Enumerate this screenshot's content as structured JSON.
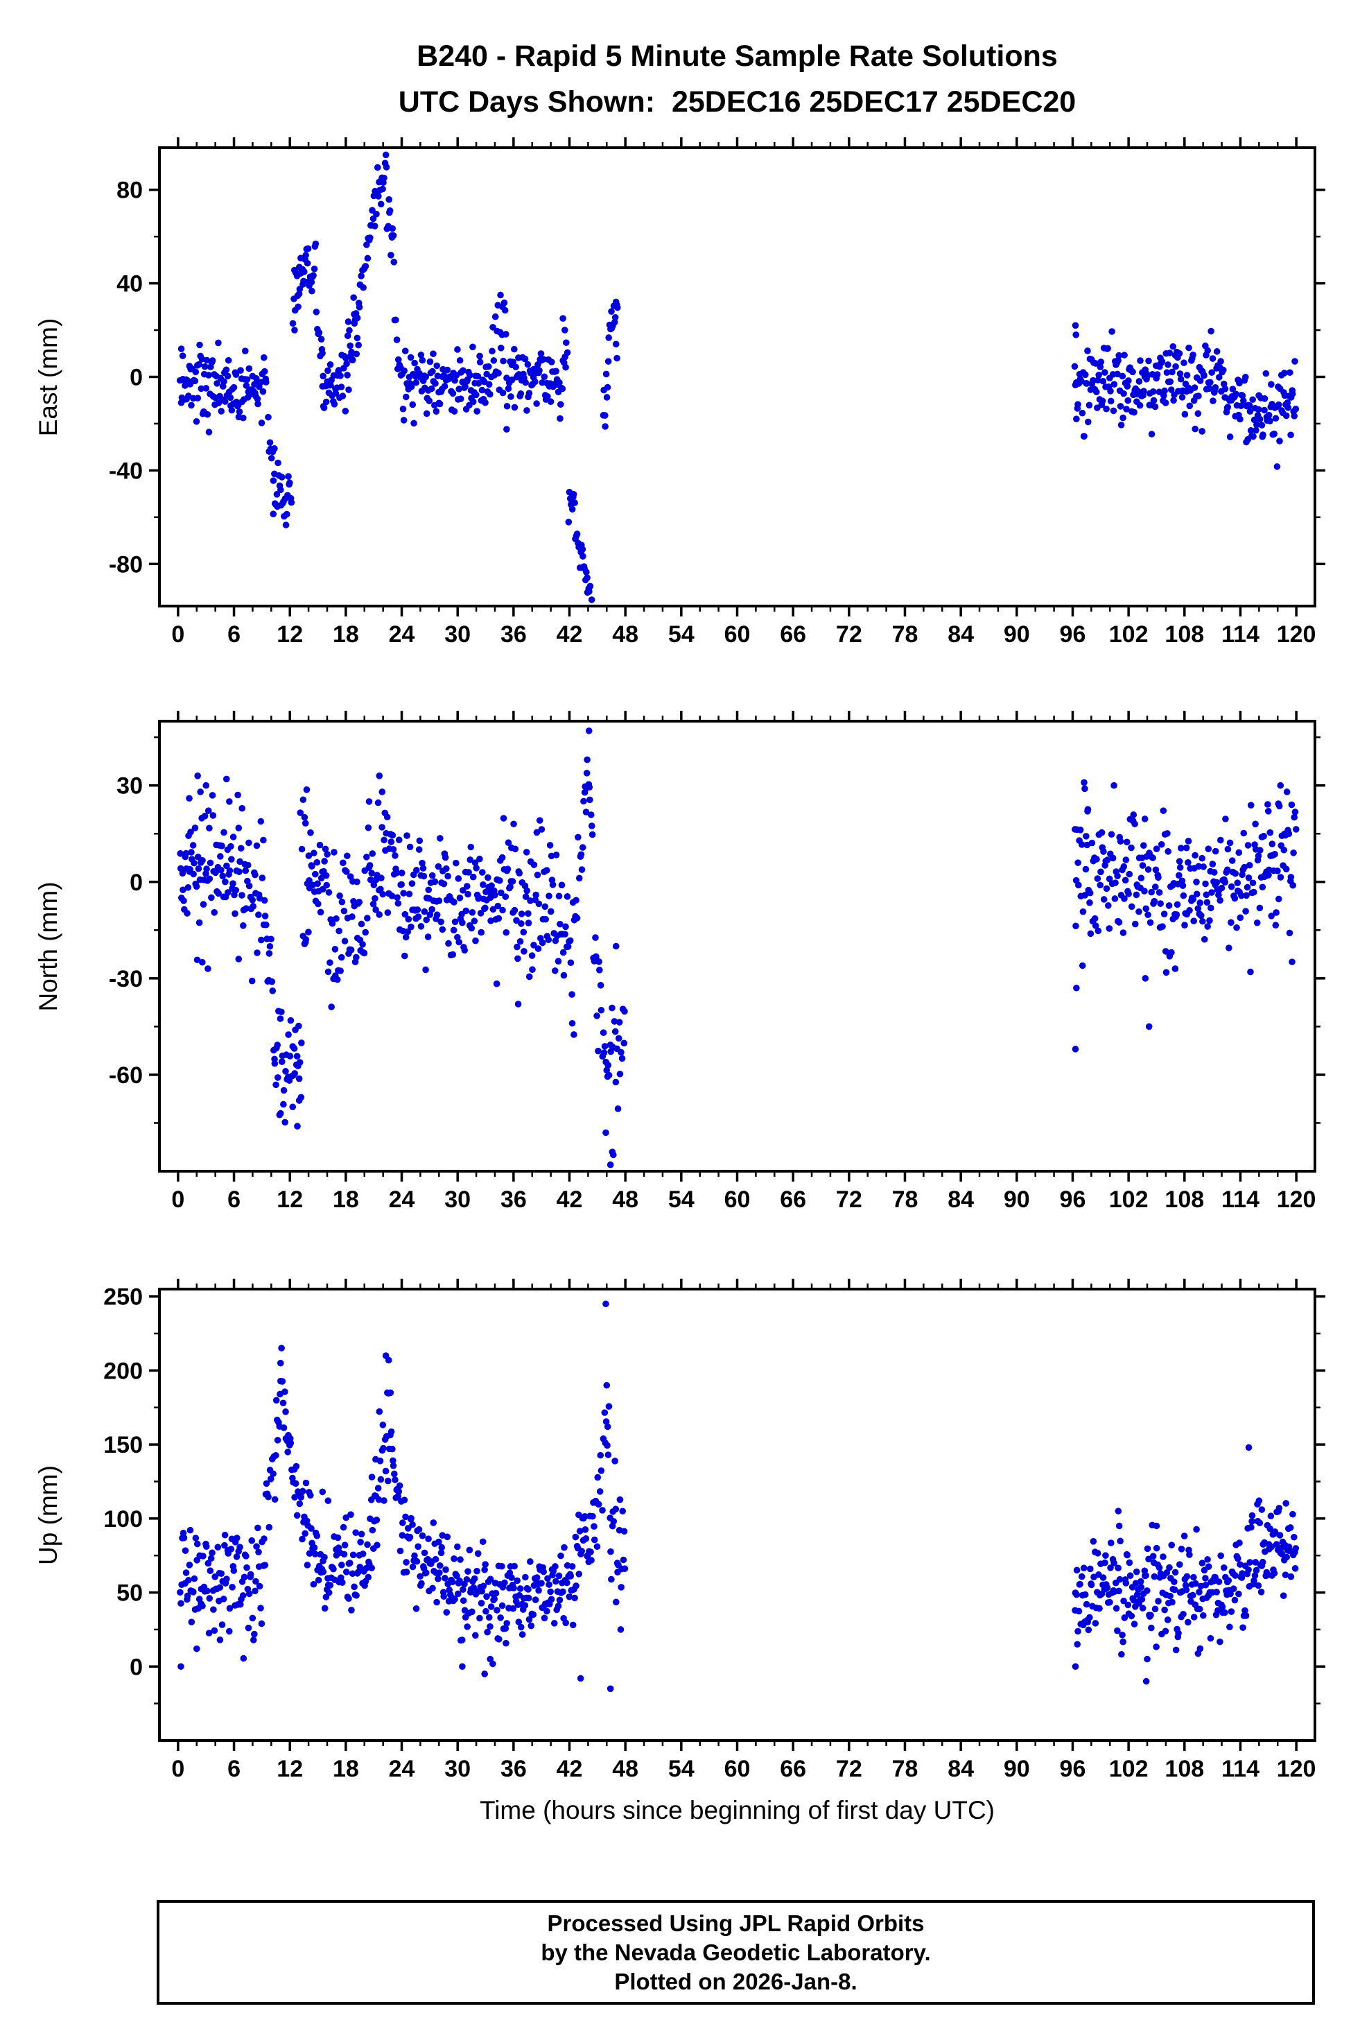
{
  "title": {
    "line1": "B240 - Rapid 5 Minute Sample Rate Solutions",
    "line2": "UTC Days Shown:  25DEC16 25DEC17 25DEC20"
  },
  "footer": {
    "lines": [
      "Processed Using JPL Rapid Orbits",
      "by the Nevada Geodetic Laboratory.",
      "Plotted on 2026-Jan-8."
    ]
  },
  "chart_data": {
    "type": "scatter",
    "station": "B240",
    "days_shown": [
      "25DEC16",
      "25DEC17",
      "25DEC20"
    ],
    "xlabel": "Time (hours since beginning of first day UTC)",
    "xlim": [
      -2,
      122
    ],
    "xticks": [
      0,
      6,
      12,
      18,
      24,
      30,
      36,
      42,
      48,
      54,
      60,
      66,
      72,
      78,
      84,
      90,
      96,
      102,
      108,
      114,
      120
    ],
    "xtick_minor": 2,
    "grid": false,
    "legend": "none",
    "marker": {
      "color": "#0000dd",
      "radius": 4.8
    },
    "segment_format": "[x_start, x_end, n_points, y_mean_start, y_mean_end, y_sd] (mm vs hours)",
    "panels": [
      {
        "name": "east",
        "ylabel": "East (mm)",
        "ylim": [
          -98,
          98
        ],
        "yticks": [
          -80,
          -40,
          0,
          40,
          80
        ],
        "ytick_minor": 20,
        "seed": 7,
        "segments": [
          [
            0.2,
            9.5,
            108,
            -4,
            -4,
            7
          ],
          [
            9.6,
            10.4,
            8,
            -18,
            -35,
            8
          ],
          [
            10.2,
            12.2,
            24,
            -50,
            -52,
            7
          ],
          [
            12.3,
            13.1,
            10,
            25,
            38,
            9
          ],
          [
            13.0,
            14.8,
            24,
            46,
            44,
            6
          ],
          [
            14.8,
            15.6,
            8,
            24,
            12,
            7
          ],
          [
            15.4,
            17.3,
            24,
            -5,
            -5,
            7
          ],
          [
            17.3,
            18.3,
            12,
            -2,
            2,
            9
          ],
          [
            18.2,
            19.5,
            20,
            8,
            32,
            8
          ],
          [
            19.5,
            20.3,
            8,
            42,
            48,
            5
          ],
          [
            20.3,
            21.3,
            12,
            55,
            74,
            6
          ],
          [
            21.3,
            22.4,
            14,
            80,
            90,
            4
          ],
          [
            22.4,
            23.2,
            12,
            72,
            56,
            6
          ],
          [
            23.2,
            24.0,
            8,
            26,
            4,
            6
          ],
          [
            24.0,
            33.5,
            112,
            -2,
            -2,
            8
          ],
          [
            33.6,
            35.3,
            20,
            6,
            14,
            9
          ],
          [
            35.2,
            40.6,
            60,
            0,
            -1,
            8
          ],
          [
            40.6,
            41.8,
            14,
            2,
            4,
            9
          ],
          [
            41.9,
            42.6,
            9,
            -45,
            -60,
            6
          ],
          [
            42.6,
            43.6,
            12,
            -63,
            -84,
            5
          ],
          [
            43.6,
            44.4,
            10,
            -86,
            -95,
            4
          ],
          [
            45.6,
            46.2,
            8,
            -18,
            2,
            8
          ],
          [
            46.2,
            47.2,
            12,
            18,
            30,
            5
          ],
          [
            96.2,
            104,
            92,
            -3,
            -3,
            8
          ],
          [
            104,
            112,
            92,
            -2,
            -3,
            8
          ],
          [
            112,
            115,
            34,
            -6,
            -9,
            8
          ],
          [
            115,
            118,
            34,
            -14,
            -16,
            8
          ],
          [
            118,
            120,
            24,
            -10,
            -4,
            8
          ]
        ],
        "points": [
          [
            0.35,
            12
          ],
          [
            0.5,
            9
          ],
          [
            12.5,
            20
          ],
          [
            34.6,
            35
          ],
          [
            34.8,
            30
          ],
          [
            41.3,
            25
          ],
          [
            41.5,
            20
          ],
          [
            47.0,
            14
          ],
          [
            47.1,
            8
          ],
          [
            96.3,
            22
          ],
          [
            96.35,
            18
          ],
          [
            96.4,
            -18
          ]
        ]
      },
      {
        "name": "north",
        "ylabel": "North (mm)",
        "ylim": [
          -90,
          50
        ],
        "yticks": [
          -60,
          -30,
          0,
          30
        ],
        "ytick_minor": 15,
        "seed": 13,
        "segments": [
          [
            0.2,
            2.0,
            24,
            2,
            2,
            8
          ],
          [
            2.0,
            9.5,
            88,
            0,
            0,
            11
          ],
          [
            9.5,
            10.2,
            8,
            -15,
            -28,
            8
          ],
          [
            10.2,
            13.3,
            38,
            -52,
            -58,
            9
          ],
          [
            13.1,
            13.9,
            6,
            18,
            15,
            6
          ],
          [
            13.4,
            14.1,
            7,
            -18,
            -8,
            7
          ],
          [
            14.0,
            16.0,
            24,
            0,
            0,
            8
          ],
          [
            16.0,
            20.0,
            46,
            -10,
            -12,
            11
          ],
          [
            20.0,
            23.0,
            34,
            4,
            6,
            11
          ],
          [
            23.0,
            24.0,
            12,
            -2,
            -2,
            8
          ],
          [
            24.0,
            29.0,
            58,
            -4,
            -5,
            10
          ],
          [
            29.0,
            30.2,
            12,
            -12,
            -10,
            9
          ],
          [
            30.2,
            36.0,
            68,
            -3,
            -4,
            10
          ],
          [
            36.0,
            38.0,
            24,
            -8,
            -8,
            11
          ],
          [
            38.0,
            41.0,
            34,
            -5,
            -6,
            10
          ],
          [
            41.0,
            42.5,
            16,
            -14,
            -28,
            8
          ],
          [
            42.5,
            43.5,
            10,
            -8,
            10,
            9
          ],
          [
            43.5,
            44.5,
            12,
            24,
            28,
            7
          ],
          [
            44.5,
            45.5,
            10,
            -22,
            -32,
            10
          ],
          [
            45.5,
            47.5,
            22,
            -55,
            -60,
            11
          ],
          [
            47.5,
            48.0,
            5,
            -45,
            -42,
            7
          ],
          [
            96.2,
            98.0,
            22,
            4,
            4,
            12
          ],
          [
            98.0,
            104,
            68,
            2,
            2,
            10
          ],
          [
            104,
            110,
            68,
            -2,
            -2,
            10
          ],
          [
            110,
            116,
            68,
            0,
            0,
            10
          ],
          [
            116,
            120,
            46,
            4,
            6,
            11
          ]
        ],
        "points": [
          [
            1.2,
            26
          ],
          [
            2.1,
            33
          ],
          [
            2.4,
            28
          ],
          [
            3.0,
            30
          ],
          [
            5.2,
            32
          ],
          [
            5.5,
            25
          ],
          [
            2.6,
            -25
          ],
          [
            3.2,
            -27
          ],
          [
            6.5,
            -24
          ],
          [
            11.0,
            -72
          ],
          [
            12.8,
            -76
          ],
          [
            13.0,
            -68
          ],
          [
            12.3,
            -70
          ],
          [
            21.6,
            33
          ],
          [
            21.9,
            28
          ],
          [
            20.5,
            25
          ],
          [
            36.5,
            -38
          ],
          [
            42.3,
            -44
          ],
          [
            44.1,
            47
          ],
          [
            43.9,
            38
          ],
          [
            46.4,
            -88
          ],
          [
            46.6,
            -84
          ],
          [
            45.9,
            -78
          ],
          [
            47.0,
            -20
          ],
          [
            96.3,
            -52
          ],
          [
            96.4,
            -33
          ],
          [
            97.3,
            29
          ],
          [
            97.6,
            22
          ],
          [
            104.2,
            -45
          ],
          [
            103.8,
            -30
          ],
          [
            107.0,
            -27
          ],
          [
            118.3,
            30
          ],
          [
            119.0,
            28
          ],
          [
            119.5,
            24
          ],
          [
            117.0,
            22
          ]
        ]
      },
      {
        "name": "up",
        "ylabel": "Up (mm)",
        "ylim": [
          -50,
          255
        ],
        "yticks": [
          0,
          50,
          100,
          150,
          200,
          250
        ],
        "ytick_minor": 25,
        "seed": 29,
        "segments": [
          [
            0.2,
            1.0,
            10,
            55,
            55,
            22
          ],
          [
            1.0,
            9.0,
            92,
            60,
            62,
            20
          ],
          [
            9.0,
            10.5,
            16,
            85,
            140,
            15
          ],
          [
            10.5,
            11.3,
            10,
            160,
            195,
            12
          ],
          [
            11.3,
            12.5,
            14,
            170,
            125,
            15
          ],
          [
            12.5,
            14.5,
            24,
            118,
            92,
            14
          ],
          [
            14.5,
            20.0,
            62,
            68,
            70,
            17
          ],
          [
            20.0,
            21.5,
            18,
            80,
            100,
            18
          ],
          [
            21.5,
            23.0,
            18,
            120,
            175,
            18
          ],
          [
            23.0,
            24.0,
            12,
            145,
            100,
            15
          ],
          [
            24.0,
            26.0,
            24,
            85,
            80,
            15
          ],
          [
            26.0,
            30.0,
            48,
            65,
            62,
            17
          ],
          [
            30.0,
            33.0,
            36,
            52,
            50,
            17
          ],
          [
            33.0,
            36.0,
            36,
            45,
            44,
            17
          ],
          [
            36.0,
            40.0,
            48,
            50,
            50,
            15
          ],
          [
            40.0,
            42.0,
            24,
            55,
            56,
            17
          ],
          [
            42.0,
            43.5,
            18,
            68,
            72,
            18
          ],
          [
            43.5,
            45.0,
            18,
            80,
            105,
            15
          ],
          [
            45.0,
            46.3,
            13,
            115,
            165,
            20
          ],
          [
            46.3,
            48.0,
            20,
            100,
            70,
            19
          ],
          [
            96.2,
            98.0,
            22,
            45,
            46,
            15
          ],
          [
            98.0,
            102,
            48,
            55,
            56,
            17
          ],
          [
            102,
            104,
            24,
            46,
            45,
            17
          ],
          [
            104,
            108,
            48,
            55,
            54,
            17
          ],
          [
            108,
            112,
            48,
            50,
            52,
            15
          ],
          [
            112,
            115,
            36,
            55,
            58,
            17
          ],
          [
            115,
            117,
            24,
            68,
            72,
            18
          ],
          [
            117,
            120,
            40,
            85,
            84,
            14
          ]
        ],
        "points": [
          [
            0.3,
            0
          ],
          [
            2.0,
            12
          ],
          [
            4.5,
            18
          ],
          [
            11.0,
            205
          ],
          [
            15.5,
            118
          ],
          [
            16.1,
            112
          ],
          [
            20.8,
            128
          ],
          [
            21.2,
            140
          ],
          [
            22.3,
            210
          ],
          [
            22.6,
            207
          ],
          [
            22.8,
            185
          ],
          [
            30.5,
            0
          ],
          [
            32.9,
            -5
          ],
          [
            33.5,
            5
          ],
          [
            43.2,
            -8
          ],
          [
            45.9,
            245
          ],
          [
            46.0,
            190
          ],
          [
            46.1,
            162
          ],
          [
            46.4,
            -15
          ],
          [
            47.5,
            25
          ],
          [
            96.3,
            0
          ],
          [
            96.5,
            15
          ],
          [
            100.9,
            105
          ],
          [
            101.0,
            95
          ],
          [
            103.9,
            -10
          ],
          [
            104.0,
            5
          ],
          [
            105.0,
            95
          ],
          [
            114.9,
            148
          ],
          [
            116.0,
            112
          ],
          [
            116.3,
            106
          ]
        ]
      }
    ]
  }
}
